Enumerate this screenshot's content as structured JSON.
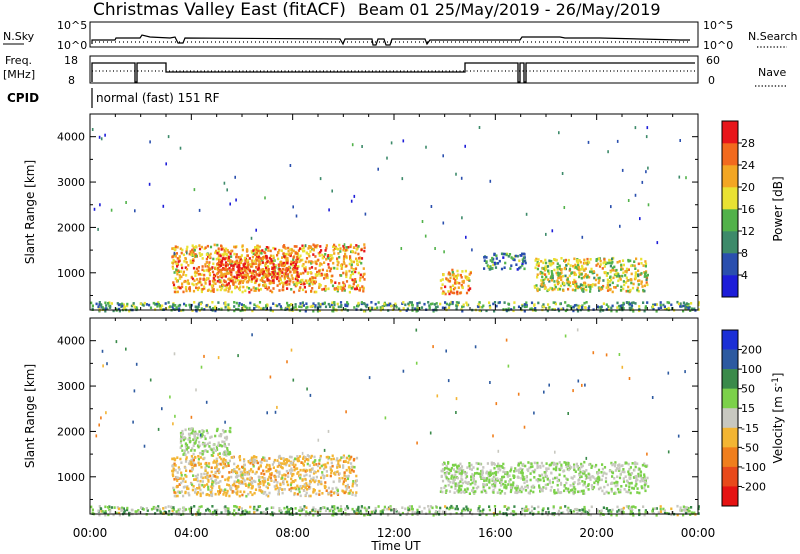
{
  "header": {
    "station": "Christmas Valley East (fitACF)",
    "beam_info": "Beam 01 25/May/2019 - 26/May/2019"
  },
  "summary": {
    "nsky_label": "N.Sky",
    "nsearch_label": "N.Search",
    "nsky_ticks": [
      "10^5",
      "10^0"
    ],
    "freq_label": "Freq.",
    "freq_unit": "[MHz]",
    "freq_ticks": [
      "18",
      "8"
    ],
    "nave_label": "Nave",
    "nave_ticks": [
      "60",
      "0"
    ],
    "cpid_label": "CPID",
    "cpid_text": "normal (fast) 151 RF"
  },
  "axes": {
    "ylabel": "Slant Range [km]",
    "xlabel": "Time UT",
    "x_tick_labels": [
      "00:00",
      "04:00",
      "08:00",
      "12:00",
      "16:00",
      "20:00",
      "00:00"
    ],
    "y_tick_labels": [
      "1000",
      "2000",
      "3000",
      "4000"
    ]
  },
  "power_colorbar": {
    "label": "Power [dB]",
    "tick_labels": [
      "4",
      "8",
      "12",
      "16",
      "20",
      "24",
      "28"
    ],
    "colors": [
      "#1d1dd8",
      "#2a4fae",
      "#3d8a6a",
      "#52b24a",
      "#e9e233",
      "#f3a623",
      "#f26a1e",
      "#e8161b"
    ]
  },
  "velocity_colorbar": {
    "label": "Velocity [m s",
    "label_sup": "-1",
    "label_end": "]",
    "tick_labels": [
      "200",
      "100",
      "50",
      "15",
      "-15",
      "-50",
      "-100",
      "-200"
    ],
    "colors": [
      "#1b2fd6",
      "#2d5aa0",
      "#3a8a4a",
      "#7cd14a",
      "#c8c8c0",
      "#f3b533",
      "#f07e1c",
      "#e8491b",
      "#e51212"
    ]
  },
  "chart_data": [
    {
      "type": "heatmap",
      "title": "Power [dB]",
      "xlabel": "Time UT",
      "ylabel": "Slant Range [km]",
      "xlim": [
        "00:00",
        "24:00"
      ],
      "ylim": [
        180,
        4500
      ],
      "x_ticks": [
        "00:00",
        "04:00",
        "08:00",
        "12:00",
        "16:00",
        "20:00",
        "00:00"
      ],
      "y_ticks": [
        1000,
        2000,
        3000,
        4000
      ],
      "colorbar_range_db": [
        0,
        32
      ],
      "regions": [
        {
          "t_start": 3.2,
          "t_end": 10.8,
          "range_start": 600,
          "range_end": 1650,
          "power_db": 22
        },
        {
          "t_start": 5.0,
          "t_end": 8.2,
          "range_start": 800,
          "range_end": 1400,
          "power_db": 27
        },
        {
          "t_start": 13.8,
          "t_end": 15.0,
          "range_start": 550,
          "range_end": 1100,
          "power_db": 22
        },
        {
          "t_start": 15.5,
          "t_end": 17.2,
          "range_start": 1100,
          "range_end": 1450,
          "power_db": 10
        },
        {
          "t_start": 17.5,
          "t_end": 22.0,
          "range_start": 600,
          "range_end": 1350,
          "power_db": 18
        },
        {
          "t_start": 0.0,
          "t_end": 24.0,
          "range_start": 180,
          "range_end": 380,
          "power_db": 12
        }
      ]
    },
    {
      "type": "heatmap",
      "title": "Velocity [m s-1]",
      "xlabel": "Time UT",
      "ylabel": "Slant Range [km]",
      "xlim": [
        "00:00",
        "24:00"
      ],
      "ylim": [
        180,
        4500
      ],
      "x_ticks": [
        "00:00",
        "04:00",
        "08:00",
        "12:00",
        "16:00",
        "20:00",
        "00:00"
      ],
      "y_ticks": [
        1000,
        2000,
        3000,
        4000
      ],
      "colorbar_range": [
        -250,
        250
      ],
      "regions": [
        {
          "t_start": 3.2,
          "t_end": 10.5,
          "range_start": 600,
          "range_end": 1500,
          "velocity": -40
        },
        {
          "t_start": 3.5,
          "t_end": 5.5,
          "range_start": 1500,
          "range_end": 2100,
          "velocity": 0
        },
        {
          "t_start": 13.8,
          "t_end": 22.0,
          "range_start": 650,
          "range_end": 1350,
          "velocity": 0
        },
        {
          "t_start": 0.0,
          "t_end": 24.0,
          "range_start": 180,
          "range_end": 380,
          "velocity": 10
        }
      ]
    }
  ]
}
